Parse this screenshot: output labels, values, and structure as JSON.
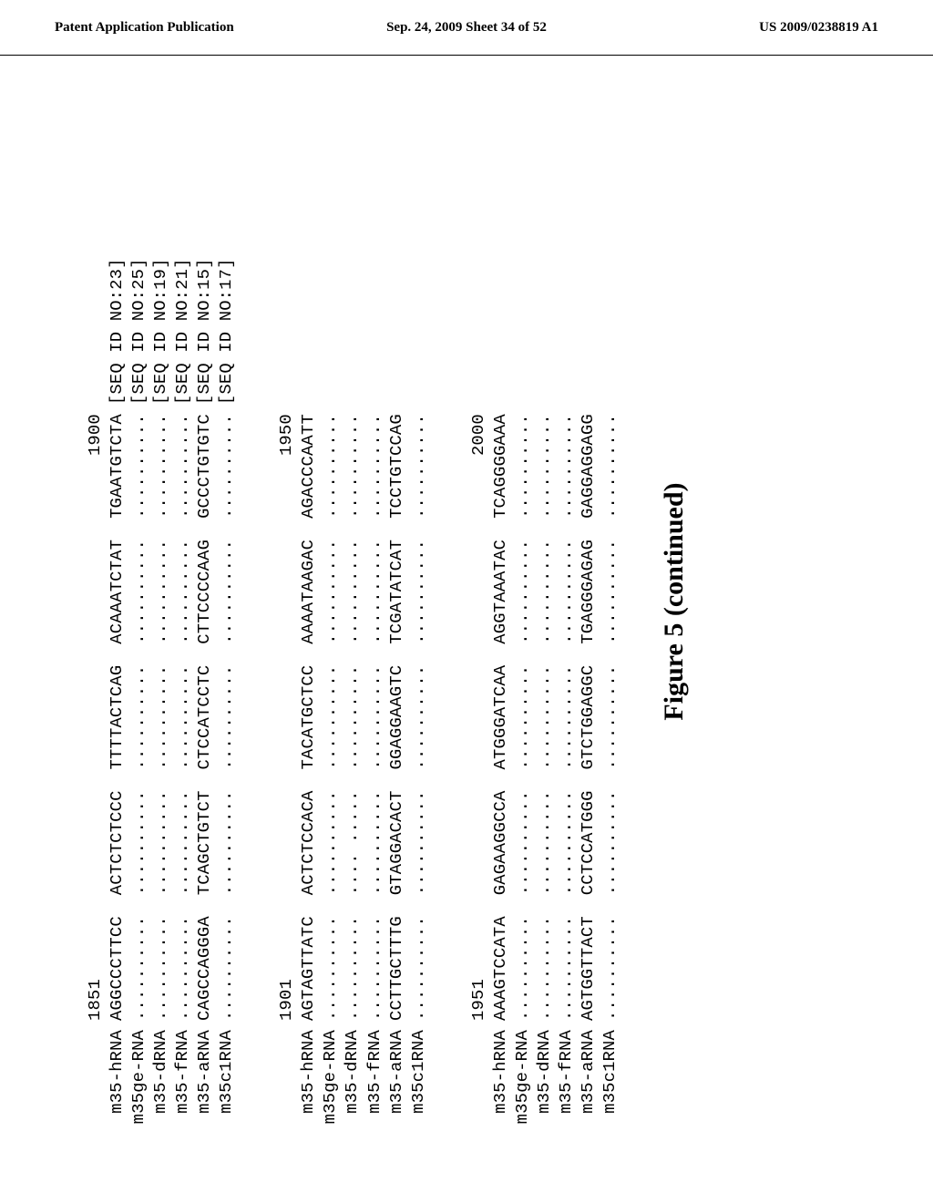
{
  "header": {
    "left": "Patent Application Publication",
    "center": "Sep. 24, 2009  Sheet 34 of 52",
    "right": "US 2009/0238819 A1"
  },
  "figure_title": "Figure 5 (continued)",
  "alignment": {
    "gap": "  ",
    "blocks": [
      {
        "start_label": "1851",
        "end_label": "1900",
        "rows": [
          {
            "label": "m35-hRNA",
            "cols": [
              "AGGCCCTTCC",
              "ACTCTCTCCC",
              "TTTTACTCAG",
              "ACAAATCTAT",
              "TGAATGTCTA"
            ],
            "tail": "[SEQ ID NO:23]"
          },
          {
            "label": "m35ge-RNA",
            "cols": [
              "..........",
              "..........",
              "..........",
              "..........",
              ".........."
            ],
            "tail": "[SEQ ID NO:25]"
          },
          {
            "label": "m35-dRNA",
            "cols": [
              "..........",
              "..........",
              "..........",
              "..........",
              ".........."
            ],
            "tail": "[SEQ ID NO:19]"
          },
          {
            "label": "m35-fRNA",
            "cols": [
              "..........",
              "..........",
              "..........",
              "..........",
              ".........."
            ],
            "tail": "[SEQ ID NO:21]"
          },
          {
            "label": "m35-aRNA",
            "cols": [
              "CAGCCAGGGA",
              "TCAGCTGTCT",
              "CTCCATCCTC",
              "CTTCCCCAAG",
              "GCCCTGTGTC"
            ],
            "tail": "[SEQ ID NO:15]"
          },
          {
            "label": "m35c1RNA",
            "cols": [
              "..........",
              "..........",
              "..........",
              "..........",
              ".........."
            ],
            "tail": "[SEQ ID NO:17]"
          }
        ]
      },
      {
        "start_label": "1901",
        "end_label": "1950",
        "rows": [
          {
            "label": "m35-hRNA",
            "cols": [
              "AGTAGTTATC",
              "ACTCTCCACA",
              "TACATGCTCC",
              "AAAATAAGAC",
              "AGACCCAATT"
            ],
            "tail": ""
          },
          {
            "label": "m35ge-RNA",
            "cols": [
              "..........",
              "..........",
              "..........",
              "..........",
              ".........."
            ],
            "tail": ""
          },
          {
            "label": "m35-dRNA",
            "cols": [
              "..........",
              ".... .....",
              "..........",
              "..........",
              ".........."
            ],
            "tail": ""
          },
          {
            "label": "m35-fRNA",
            "cols": [
              "..........",
              "..........",
              "..........",
              "..........",
              ".........."
            ],
            "tail": ""
          },
          {
            "label": "m35-aRNA",
            "cols": [
              "CCTTGCTTTG",
              "GTAGGACACT",
              "GGAGGAAGTC",
              "TCGATATCAT",
              "TCCTGTCCAG"
            ],
            "tail": ""
          },
          {
            "label": "m35c1RNA",
            "cols": [
              "..........",
              "..........",
              "..........",
              "..........",
              ".........."
            ],
            "tail": ""
          }
        ]
      },
      {
        "start_label": "1951",
        "end_label": "2000",
        "rows": [
          {
            "label": "m35-hRNA",
            "cols": [
              "AAAGTCCATA",
              "GAGAAGGCCA",
              "ATGGGATCAA",
              "AGGTAAATAC",
              "TCAGGGGAAA"
            ],
            "tail": ""
          },
          {
            "label": "m35ge-RNA",
            "cols": [
              "..........",
              "..........",
              "..........",
              "..........",
              ".........."
            ],
            "tail": ""
          },
          {
            "label": "m35-dRNA",
            "cols": [
              "..........",
              "..........",
              "..........",
              "..........",
              ".........."
            ],
            "tail": ""
          },
          {
            "label": "m35-fRNA",
            "cols": [
              "..........",
              "..........",
              "..........",
              "..........",
              ".........."
            ],
            "tail": ""
          },
          {
            "label": "m35-aRNA",
            "cols": [
              "AGTGGTTACT",
              "CCTCCATGGG",
              "GTCTGGAGGC",
              "TGAGGGAGAG",
              "GAGGAGGAGG"
            ],
            "tail": ""
          },
          {
            "label": "m35c1RNA",
            "cols": [
              "..........",
              "..........",
              "..........",
              "..........",
              ".........."
            ],
            "tail": ""
          }
        ]
      }
    ]
  }
}
